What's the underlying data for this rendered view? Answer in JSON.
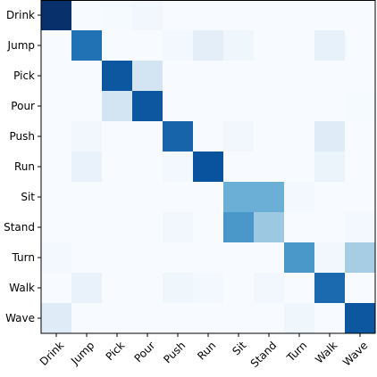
{
  "chart_data": {
    "type": "heatmap",
    "rows": [
      "Drink",
      "Jump",
      "Pick",
      "Pour",
      "Push",
      "Run",
      "Sit",
      "Stand",
      "Turn",
      "Walk",
      "Wave"
    ],
    "columns": [
      "Drink",
      "Jump",
      "Pick",
      "Pour",
      "Push",
      "Run",
      "Sit",
      "Stand",
      "Turn",
      "Walk",
      "Wave"
    ],
    "values": [
      [
        1.0,
        0.0,
        0.01,
        0.03,
        0.0,
        0.0,
        0.0,
        0.0,
        0.0,
        0.0,
        0.0
      ],
      [
        0.0,
        0.75,
        0.0,
        0.0,
        0.02,
        0.1,
        0.04,
        0.0,
        0.0,
        0.08,
        0.0
      ],
      [
        0.0,
        0.0,
        0.85,
        0.18,
        0.0,
        0.0,
        0.0,
        0.0,
        0.0,
        0.0,
        0.0
      ],
      [
        0.0,
        0.0,
        0.18,
        0.85,
        0.0,
        0.0,
        0.0,
        0.0,
        0.0,
        0.0,
        0.01
      ],
      [
        0.0,
        0.03,
        0.0,
        0.0,
        0.8,
        0.0,
        0.03,
        0.0,
        0.0,
        0.12,
        0.0
      ],
      [
        0.0,
        0.07,
        0.0,
        0.0,
        0.02,
        0.87,
        0.0,
        0.0,
        0.0,
        0.06,
        0.0
      ],
      [
        0.0,
        0.0,
        0.0,
        0.0,
        0.0,
        0.0,
        0.5,
        0.5,
        0.02,
        0.0,
        0.0
      ],
      [
        0.0,
        0.0,
        0.0,
        0.0,
        0.03,
        0.0,
        0.6,
        0.38,
        0.0,
        0.0,
        0.02
      ],
      [
        0.02,
        0.0,
        0.0,
        0.0,
        0.0,
        0.0,
        0.0,
        0.0,
        0.6,
        0.03,
        0.35
      ],
      [
        0.0,
        0.07,
        0.0,
        0.0,
        0.04,
        0.02,
        0.0,
        0.03,
        0.0,
        0.78,
        0.0
      ],
      [
        0.12,
        0.0,
        0.0,
        0.0,
        0.0,
        0.0,
        0.0,
        0.0,
        0.04,
        0.0,
        0.85
      ]
    ],
    "colormap": "Blues",
    "value_range": [
      0,
      1
    ],
    "colorbar": false,
    "grid": false,
    "xtick_rotation_deg": 45
  }
}
